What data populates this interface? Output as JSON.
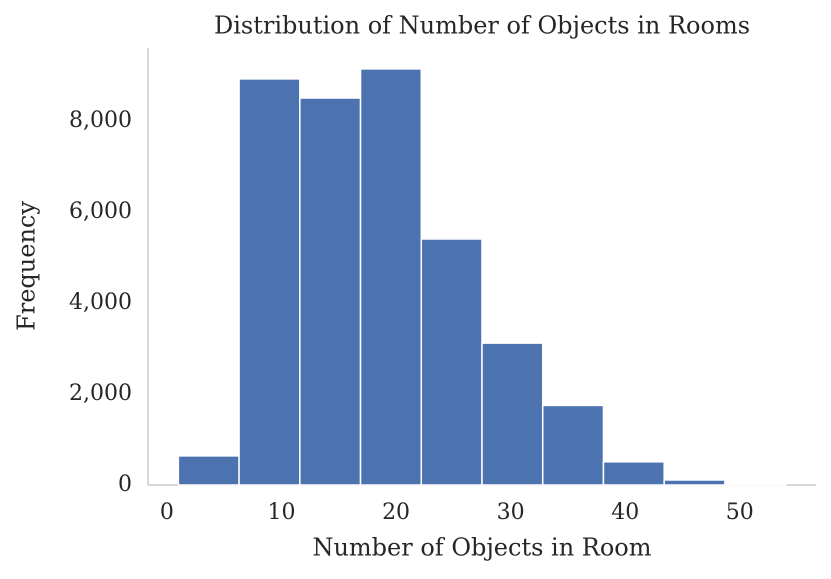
{
  "chart_data": {
    "type": "histogram",
    "title": "Distribution of Number of Objects in Rooms",
    "xlabel": "Number of Objects in Room",
    "ylabel": "Frequency",
    "bins": [
      1,
      6.3,
      11.6,
      16.9,
      22.2,
      27.5,
      32.8,
      38.1,
      43.4,
      48.7,
      54
    ],
    "values": [
      640,
      8930,
      8510,
      9150,
      5410,
      3120,
      1750,
      510,
      110,
      10
    ],
    "color": "#4c72b0",
    "xlim": [
      -1.65,
      56.65
    ],
    "xticks": [
      0,
      10,
      20,
      30,
      40,
      50
    ],
    "ylim": [
      0,
      9610
    ],
    "yticks": [
      0,
      {
        "value": 2000,
        "label": "2,000"
      },
      {
        "value": 4000,
        "label": "4,000"
      },
      {
        "value": 6000,
        "label": "6,000"
      },
      {
        "value": 8000,
        "label": "8,000"
      }
    ],
    "grid": false
  }
}
